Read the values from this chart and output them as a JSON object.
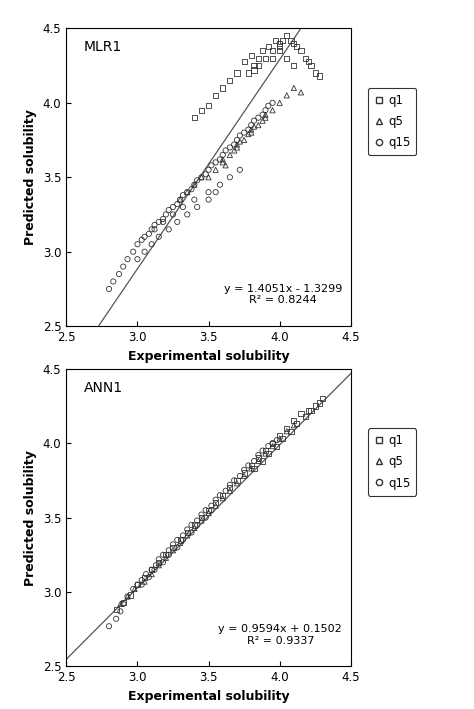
{
  "plot1": {
    "title": "MLR1",
    "equation": "y = 1.4051x - 1.3299",
    "r2": "R² = 0.8244",
    "slope": 1.4051,
    "intercept": -1.3299,
    "q1_x": [
      3.75,
      3.8,
      3.82,
      3.85,
      3.88,
      3.9,
      3.92,
      3.95,
      3.97,
      4.0,
      4.0,
      4.02,
      4.05,
      4.08,
      4.1,
      4.12,
      4.15,
      4.18,
      4.2,
      4.22,
      4.25,
      4.28,
      3.7,
      3.65,
      3.6,
      3.55,
      3.5,
      3.45,
      3.4,
      3.85,
      3.78,
      3.82,
      4.0,
      4.05,
      4.1,
      3.95
    ],
    "q1_y": [
      4.28,
      4.32,
      4.25,
      4.3,
      4.35,
      4.3,
      4.38,
      4.35,
      4.42,
      4.4,
      4.38,
      4.42,
      4.45,
      4.42,
      4.4,
      4.38,
      4.35,
      4.3,
      4.28,
      4.25,
      4.2,
      4.18,
      4.2,
      4.15,
      4.1,
      4.05,
      3.98,
      3.95,
      3.9,
      4.25,
      4.2,
      4.22,
      4.35,
      4.3,
      4.25,
      4.3
    ],
    "q5_x": [
      3.5,
      3.55,
      3.6,
      3.65,
      3.7,
      3.75,
      3.8,
      3.85,
      3.9,
      3.95,
      4.0,
      4.05,
      4.1,
      4.15,
      3.4,
      3.45,
      3.3,
      3.35,
      3.6,
      3.7,
      3.8,
      3.9,
      3.62,
      3.68,
      3.72,
      3.78,
      3.82,
      3.88
    ],
    "q5_y": [
      3.5,
      3.55,
      3.6,
      3.65,
      3.7,
      3.75,
      3.8,
      3.85,
      3.9,
      3.95,
      4.0,
      4.05,
      4.1,
      4.07,
      3.45,
      3.5,
      3.35,
      3.4,
      3.62,
      3.72,
      3.82,
      3.92,
      3.58,
      3.68,
      3.74,
      3.79,
      3.84,
      3.88
    ],
    "q15_x": [
      2.8,
      2.83,
      2.87,
      2.9,
      2.93,
      2.97,
      3.0,
      3.03,
      3.05,
      3.08,
      3.1,
      3.12,
      3.15,
      3.18,
      3.2,
      3.22,
      3.25,
      3.28,
      3.3,
      3.32,
      3.35,
      3.38,
      3.4,
      3.42,
      3.45,
      3.48,
      3.5,
      3.52,
      3.55,
      3.58,
      3.6,
      3.62,
      3.65,
      3.68,
      3.7,
      3.72,
      3.75,
      3.78,
      3.8,
      3.82,
      3.85,
      3.88,
      3.9,
      3.92,
      3.95,
      3.12,
      3.18,
      3.25,
      3.32,
      3.4,
      3.5,
      3.58,
      3.65,
      3.72,
      3.0,
      3.05,
      3.1,
      3.15,
      3.22,
      3.28,
      3.35,
      3.42,
      3.5,
      3.55
    ],
    "q15_y": [
      2.75,
      2.8,
      2.85,
      2.9,
      2.95,
      3.0,
      3.05,
      3.08,
      3.1,
      3.12,
      3.15,
      3.18,
      3.2,
      3.22,
      3.25,
      3.28,
      3.3,
      3.32,
      3.35,
      3.38,
      3.4,
      3.42,
      3.45,
      3.48,
      3.5,
      3.52,
      3.55,
      3.58,
      3.6,
      3.62,
      3.65,
      3.68,
      3.7,
      3.72,
      3.75,
      3.78,
      3.8,
      3.82,
      3.85,
      3.88,
      3.9,
      3.92,
      3.95,
      3.98,
      4.0,
      3.15,
      3.2,
      3.25,
      3.3,
      3.35,
      3.4,
      3.45,
      3.5,
      3.55,
      2.95,
      3.0,
      3.05,
      3.1,
      3.15,
      3.2,
      3.25,
      3.3,
      3.35,
      3.4
    ]
  },
  "plot2": {
    "title": "ANN1",
    "equation": "y = 0.9594x + 0.1502",
    "r2": "R² = 0.9337",
    "slope": 0.9594,
    "intercept": 0.1502,
    "q1_x": [
      2.85,
      2.9,
      2.95,
      3.0,
      3.05,
      3.1,
      3.15,
      3.2,
      3.25,
      3.3,
      3.35,
      3.4,
      3.45,
      3.5,
      3.55,
      3.6,
      3.65,
      3.7,
      3.75,
      3.8,
      3.85,
      3.9,
      3.95,
      4.0,
      4.05,
      4.1,
      4.15,
      4.2,
      4.25,
      4.3,
      3.82,
      3.88,
      3.92,
      3.98,
      4.02,
      4.08,
      4.12,
      4.18,
      4.22,
      4.28
    ],
    "q1_y": [
      2.88,
      2.93,
      2.98,
      3.05,
      3.1,
      3.15,
      3.2,
      3.25,
      3.3,
      3.35,
      3.4,
      3.45,
      3.5,
      3.55,
      3.6,
      3.65,
      3.7,
      3.75,
      3.8,
      3.85,
      3.9,
      3.95,
      4.0,
      4.05,
      4.1,
      4.15,
      4.2,
      4.22,
      4.25,
      4.3,
      3.83,
      3.88,
      3.93,
      3.98,
      4.03,
      4.08,
      4.13,
      4.18,
      4.22,
      4.27
    ],
    "q5_x": [
      2.88,
      2.93,
      2.98,
      3.05,
      3.1,
      3.15,
      3.2,
      3.25,
      3.3,
      3.35,
      3.4,
      3.45,
      3.5,
      3.55,
      3.6,
      3.65,
      3.7,
      3.75,
      3.8,
      3.85,
      3.9,
      3.95,
      4.0,
      4.05,
      4.1
    ],
    "q5_y": [
      2.92,
      2.97,
      3.02,
      3.07,
      3.12,
      3.18,
      3.23,
      3.28,
      3.33,
      3.38,
      3.43,
      3.48,
      3.53,
      3.58,
      3.63,
      3.68,
      3.73,
      3.78,
      3.83,
      3.88,
      3.93,
      3.98,
      4.03,
      4.08,
      4.12
    ],
    "q15_x": [
      2.8,
      2.85,
      2.88,
      2.9,
      2.93,
      2.97,
      3.0,
      3.03,
      3.06,
      3.1,
      3.13,
      3.15,
      3.18,
      3.22,
      3.25,
      3.28,
      3.32,
      3.35,
      3.38,
      3.42,
      3.45,
      3.48,
      3.52,
      3.55,
      3.58,
      3.62,
      3.65,
      3.68,
      3.72,
      3.75,
      3.78,
      3.82,
      3.85,
      3.88,
      3.92,
      3.95,
      3.98,
      3.03,
      3.08,
      3.12,
      3.18,
      3.22,
      3.28,
      3.32,
      3.38,
      3.42,
      3.48,
      3.52
    ],
    "q15_y": [
      2.77,
      2.82,
      2.87,
      2.92,
      2.97,
      3.02,
      3.05,
      3.08,
      3.12,
      3.15,
      3.18,
      3.22,
      3.25,
      3.28,
      3.32,
      3.35,
      3.38,
      3.42,
      3.45,
      3.48,
      3.52,
      3.55,
      3.58,
      3.62,
      3.65,
      3.68,
      3.72,
      3.75,
      3.78,
      3.82,
      3.85,
      3.88,
      3.92,
      3.95,
      3.98,
      4.0,
      4.02,
      3.05,
      3.1,
      3.15,
      3.2,
      3.25,
      3.3,
      3.35,
      3.4,
      3.45,
      3.5,
      3.55
    ]
  },
  "xlim": [
    2.5,
    4.5
  ],
  "ylim": [
    2.5,
    4.5
  ],
  "xticks": [
    2.5,
    3.0,
    3.5,
    4.0,
    4.5
  ],
  "yticks": [
    2.5,
    3.0,
    3.5,
    4.0,
    4.5
  ],
  "xlabel": "Experimental solubility",
  "ylabel": "Predicted solubility",
  "marker_q1": "s",
  "marker_q5": "^",
  "marker_q15": "o",
  "marker_edgecolor": "#333333",
  "line_color": "#555555",
  "marker_size": 14,
  "legend_labels": [
    "q1",
    "q5",
    "q15"
  ]
}
